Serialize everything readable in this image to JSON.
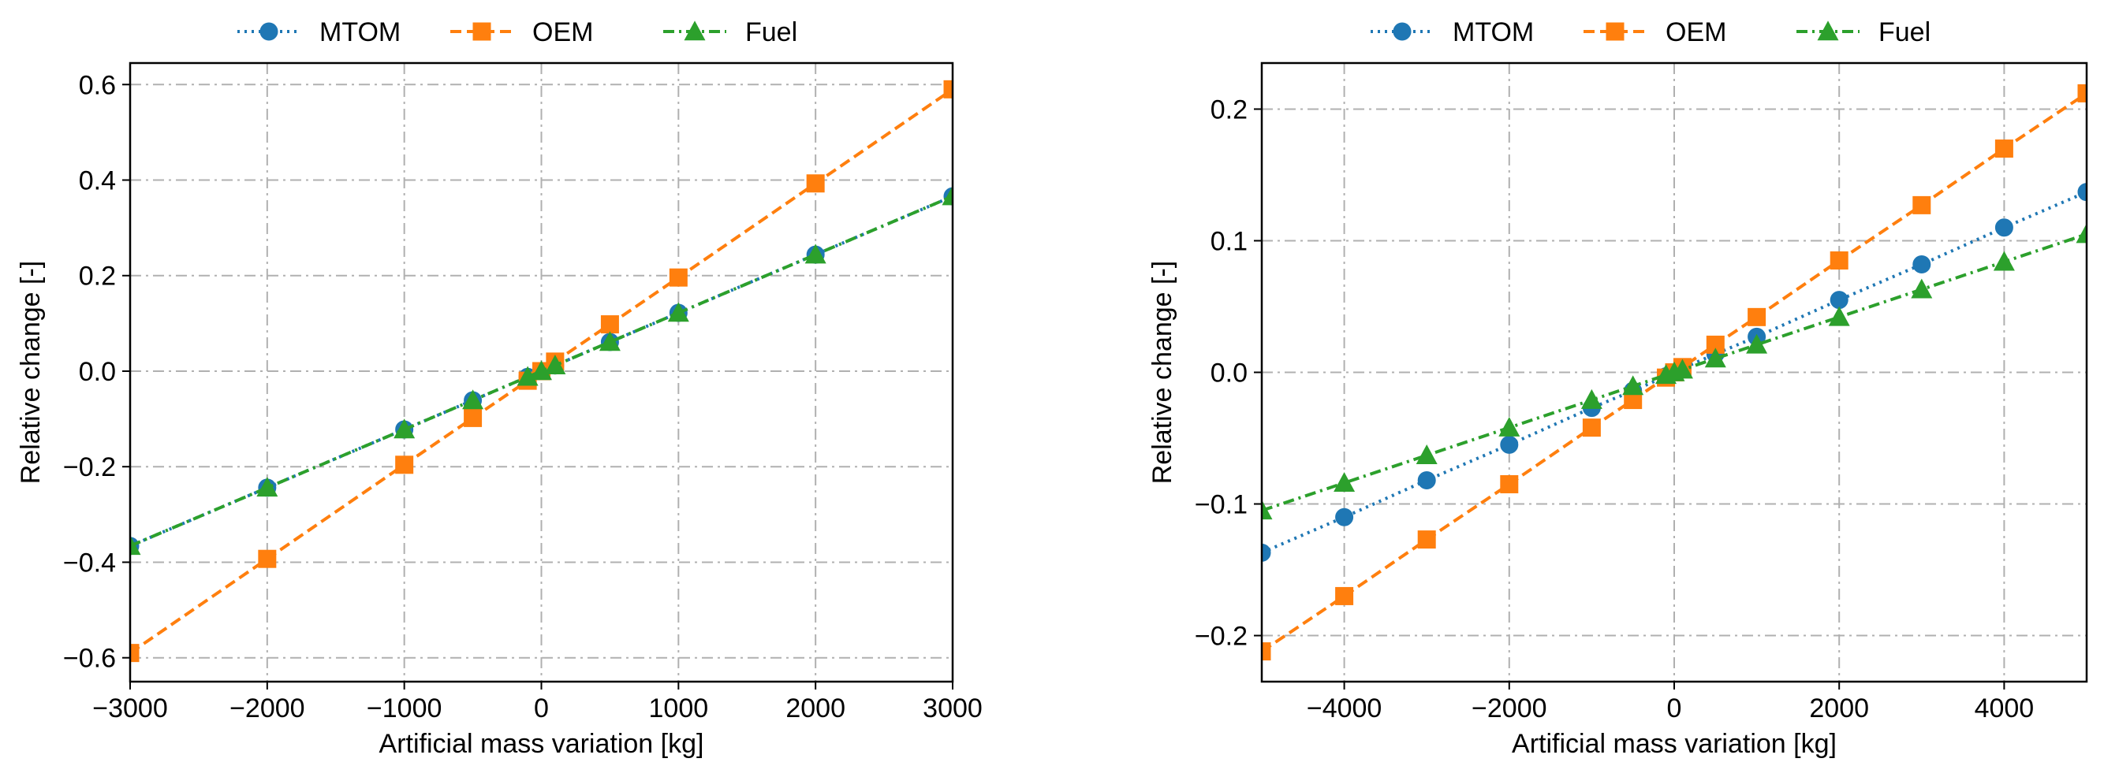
{
  "colors": {
    "MTOM": "#1f77b4",
    "OEM": "#ff7f0e",
    "Fuel": "#2ca02c",
    "grid": "#b0b0b0"
  },
  "chart_data": [
    {
      "type": "line",
      "title": "",
      "xlabel": "Artificial mass variation [kg]",
      "ylabel": "Relative change [-]",
      "xlim": [
        -3000,
        3000
      ],
      "ylim": [
        -0.65,
        0.645
      ],
      "xticks": [
        -3000,
        -2000,
        -1000,
        0,
        1000,
        2000,
        3000
      ],
      "xtick_labels": [
        "−3000",
        "−2000",
        "−1000",
        "0",
        "1000",
        "2000",
        "3000"
      ],
      "yticks": [
        -0.6,
        -0.4,
        -0.2,
        0.0,
        0.2,
        0.4,
        0.6
      ],
      "ytick_labels": [
        "−0.6",
        "−0.4",
        "−0.2",
        "0.0",
        "0.2",
        "0.4",
        "0.6"
      ],
      "grid": true,
      "legend": [
        "MTOM",
        "OEM",
        "Fuel"
      ],
      "legend_position": "top-center-outside",
      "series": [
        {
          "name": "MTOM",
          "marker": "circle",
          "linestyle": "dotted",
          "x": [
            -3000,
            -2000,
            -1000,
            -500,
            -100,
            0,
            100,
            500,
            1000,
            2000,
            3000
          ],
          "y": [
            -0.366,
            -0.244,
            -0.122,
            -0.061,
            -0.012,
            0.0,
            0.012,
            0.061,
            0.122,
            0.244,
            0.366
          ]
        },
        {
          "name": "OEM",
          "marker": "square",
          "linestyle": "dashed",
          "x": [
            -3000,
            -2000,
            -1000,
            -500,
            -100,
            0,
            100,
            500,
            1000,
            2000,
            3000
          ],
          "y": [
            -0.59,
            -0.393,
            -0.196,
            -0.098,
            -0.02,
            0.0,
            0.02,
            0.098,
            0.196,
            0.393,
            0.59
          ]
        },
        {
          "name": "Fuel",
          "marker": "triangle",
          "linestyle": "dashdot",
          "x": [
            -3000,
            -2000,
            -1000,
            -500,
            -100,
            0,
            100,
            500,
            1000,
            2000,
            3000
          ],
          "y": [
            -0.366,
            -0.244,
            -0.122,
            -0.061,
            -0.012,
            0.0,
            0.012,
            0.061,
            0.122,
            0.244,
            0.366
          ]
        }
      ]
    },
    {
      "type": "line",
      "title": "",
      "xlabel": "Artificial mass variation [kg]",
      "ylabel": "Relative change [-]",
      "xlim": [
        -5000,
        5000
      ],
      "ylim": [
        -0.235,
        0.235
      ],
      "xticks": [
        -4000,
        -2000,
        0,
        2000,
        4000
      ],
      "xtick_labels": [
        "−4000",
        "−2000",
        "0",
        "2000",
        "4000"
      ],
      "yticks": [
        -0.2,
        -0.1,
        0.0,
        0.1,
        0.2
      ],
      "ytick_labels": [
        "−0.2",
        "−0.1",
        "0.0",
        "0.1",
        "0.2"
      ],
      "grid": true,
      "legend": [
        "MTOM",
        "OEM",
        "Fuel"
      ],
      "legend_position": "top-center-outside",
      "series": [
        {
          "name": "MTOM",
          "marker": "circle",
          "linestyle": "dotted",
          "x": [
            -5000,
            -4000,
            -3000,
            -2000,
            -1000,
            -500,
            -100,
            0,
            100,
            500,
            1000,
            2000,
            3000,
            4000,
            5000
          ],
          "y": [
            -0.137,
            -0.11,
            -0.082,
            -0.055,
            -0.027,
            -0.014,
            -0.003,
            0.0,
            0.003,
            0.014,
            0.027,
            0.055,
            0.082,
            0.11,
            0.137
          ]
        },
        {
          "name": "OEM",
          "marker": "square",
          "linestyle": "dashed",
          "x": [
            -5000,
            -4000,
            -3000,
            -2000,
            -1000,
            -500,
            -100,
            0,
            100,
            500,
            1000,
            2000,
            3000,
            4000,
            5000
          ],
          "y": [
            -0.212,
            -0.17,
            -0.127,
            -0.085,
            -0.042,
            -0.021,
            -0.004,
            0.0,
            0.004,
            0.021,
            0.042,
            0.085,
            0.127,
            0.17,
            0.212
          ]
        },
        {
          "name": "Fuel",
          "marker": "triangle",
          "linestyle": "dashdot",
          "x": [
            -5000,
            -4000,
            -3000,
            -2000,
            -1000,
            -500,
            -100,
            0,
            100,
            500,
            1000,
            2000,
            3000,
            4000,
            5000
          ],
          "y": [
            -0.105,
            -0.084,
            -0.063,
            -0.042,
            -0.021,
            -0.0105,
            -0.002,
            0.0,
            0.002,
            0.0105,
            0.021,
            0.042,
            0.063,
            0.084,
            0.105
          ]
        }
      ]
    }
  ]
}
